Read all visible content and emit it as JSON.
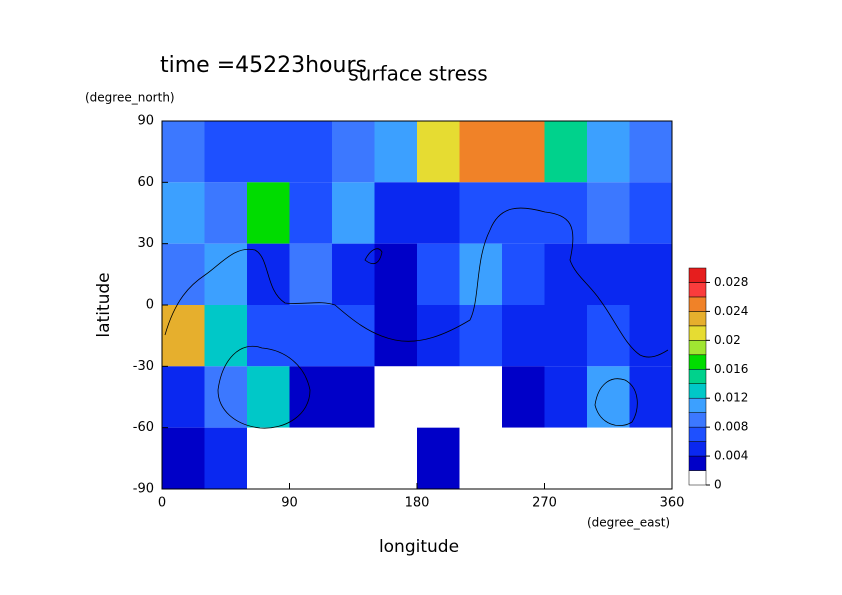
{
  "chart_data": {
    "type": "heatmap",
    "title": "surface stress",
    "subtitle": "time =45223hours",
    "x_label": "longitude",
    "y_label": "latitude",
    "x_unit": "(degree_east)",
    "y_unit": "(degree_north)",
    "xlim": [
      0,
      360
    ],
    "ylim": [
      -90,
      90
    ],
    "xticks": [
      0,
      90,
      180,
      270,
      360
    ],
    "yticks": [
      -90,
      -60,
      -30,
      0,
      30,
      60,
      90
    ],
    "x": [
      15,
      45,
      75,
      105,
      135,
      165,
      195,
      225,
      255,
      285,
      315,
      345
    ],
    "y": [
      75,
      45,
      15,
      -15,
      -45,
      -75
    ],
    "z": [
      [
        0.008,
        0.006,
        0.006,
        0.006,
        0.008,
        0.01,
        0.02,
        0.024,
        0.024,
        0.014,
        0.01,
        0.008
      ],
      [
        0.01,
        0.008,
        0.016,
        0.006,
        0.01,
        0.004,
        0.004,
        0.006,
        0.006,
        0.006,
        0.008,
        0.006
      ],
      [
        0.008,
        0.01,
        0.004,
        0.008,
        0.004,
        0.002,
        0.006,
        0.01,
        0.006,
        0.004,
        0.004,
        0.004
      ],
      [
        0.022,
        0.012,
        0.006,
        0.006,
        0.006,
        0.002,
        0.004,
        0.006,
        0.004,
        0.004,
        0.006,
        0.004
      ],
      [
        0.004,
        0.008,
        0.012,
        0.002,
        0.002,
        0,
        0,
        0,
        0.002,
        0.004,
        0.01,
        0.004
      ],
      [
        0.002,
        0.004,
        0,
        0,
        0,
        0,
        0.002,
        0,
        0,
        0,
        0,
        0
      ]
    ],
    "levels": [
      0,
      0.002,
      0.004,
      0.006,
      0.008,
      0.01,
      0.012,
      0.014,
      0.016,
      0.018,
      0.02,
      0.022,
      0.024,
      0.026,
      0.028,
      0.03
    ],
    "colors": [
      "#ffffff",
      "#0000c8",
      "#0a28f0",
      "#1e50ff",
      "#3c78ff",
      "#3ca0ff",
      "#00c8c8",
      "#00d28c",
      "#00dc00",
      "#a0e632",
      "#e6dc32",
      "#e6af2d",
      "#f08228",
      "#fa3c3c",
      "#e61e1e"
    ],
    "colorbar_ticks": [
      0,
      0.004,
      0.008,
      0.012,
      0.016,
      0.02,
      0.024,
      0.028
    ]
  }
}
